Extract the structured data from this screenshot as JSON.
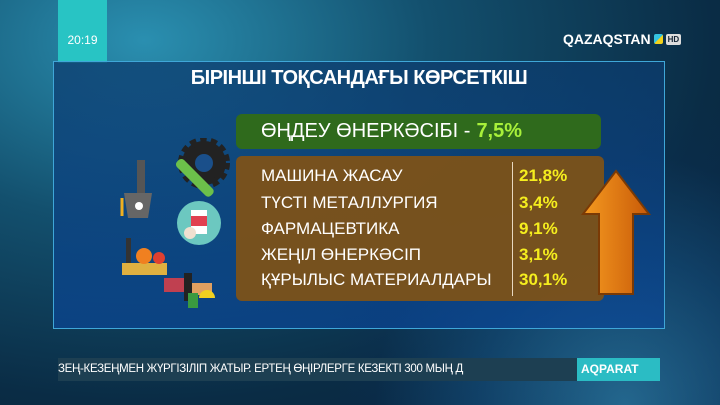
{
  "overlay": {
    "time": "20:19",
    "channel_logo": "QAZAQSTAN",
    "hd_badge": "HD"
  },
  "infographic": {
    "title": "БІРІНШІ ТОҚСАНДАҒЫ КӨРСЕТКІШ",
    "headline": {
      "label": "ӨҢДЕУ ӨНЕРКӘСІБІ -",
      "value": "7,5%"
    },
    "rows": [
      {
        "label": "МАШИНА ЖАСАУ",
        "value": "21,8%"
      },
      {
        "label": "ТҮСТІ МЕТАЛЛУРГИЯ",
        "value": "3,4%"
      },
      {
        "label": "ФАРМАЦЕВТИКА",
        "value": "9,1%"
      },
      {
        "label": "ЖЕҢІЛ ӨНЕРКӘСІП",
        "value": "3,1%"
      },
      {
        "label": "ҚҰРЫЛЫС МАТЕРИАЛДАРЫ",
        "value": "30,1%"
      }
    ],
    "arrow_icon": "arrow-up-icon"
  },
  "ticker": {
    "text": "ЗЕҢ-КЕЗЕҢМЕН ЖҮРГІЗІЛІП ЖАТЫР. ЕРТЕҢ ӨҢІРЛЕРГЕ КЕЗЕКТІ 300 МЫҢ Д",
    "badge": "AQPARAT"
  },
  "colors": {
    "accent": "#28c4c4",
    "headline_value": "#a8f03a",
    "row_value": "#f5ee1e",
    "arrow": "#e07a10"
  }
}
